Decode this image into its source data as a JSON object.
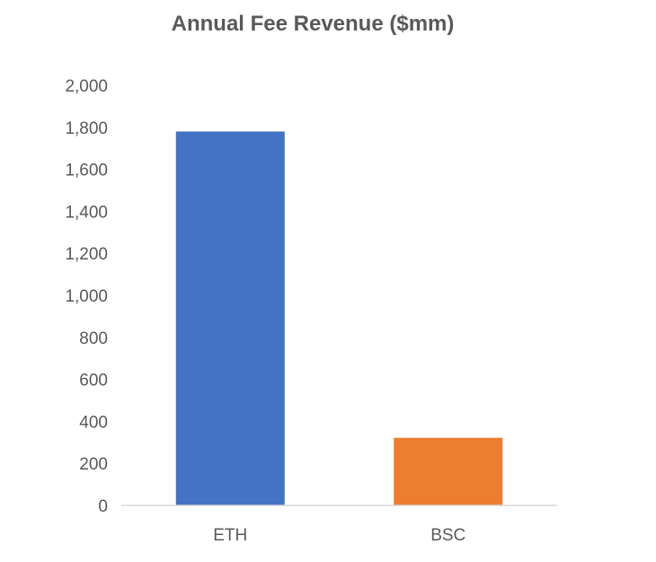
{
  "chart_data": {
    "type": "bar",
    "title": "Annual Fee Revenue ($mm)",
    "xlabel": "",
    "ylabel": "",
    "categories": [
      "ETH",
      "BSC"
    ],
    "values": [
      1780,
      322
    ],
    "ylim": [
      0,
      2000
    ],
    "yticks": [
      "0",
      "200",
      "400",
      "600",
      "800",
      "1,000",
      "1,200",
      "1,400",
      "1,600",
      "1,800",
      "2,000"
    ],
    "ytick_values": [
      0,
      200,
      400,
      600,
      800,
      1000,
      1200,
      1400,
      1600,
      1800,
      2000
    ],
    "colors": [
      "#4472C4",
      "#ED7D31"
    ],
    "grid": false,
    "legend": "none"
  }
}
